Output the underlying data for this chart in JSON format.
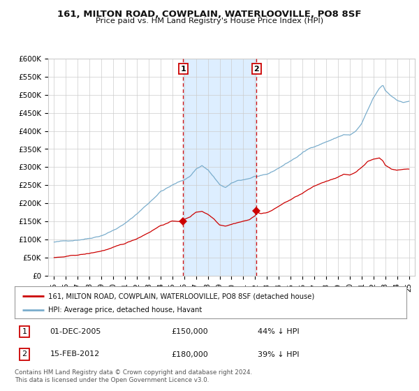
{
  "title": "161, MILTON ROAD, COWPLAIN, WATERLOOVILLE, PO8 8SF",
  "subtitle": "Price paid vs. HM Land Registry's House Price Index (HPI)",
  "legend_property": "161, MILTON ROAD, COWPLAIN, WATERLOOVILLE, PO8 8SF (detached house)",
  "legend_hpi": "HPI: Average price, detached house, Havant",
  "sale1_date": "01-DEC-2005",
  "sale1_price": 150000,
  "sale1_pct": "44%",
  "sale2_date": "15-FEB-2012",
  "sale2_price": 180000,
  "sale2_pct": "39%",
  "footer": "Contains HM Land Registry data © Crown copyright and database right 2024.\nThis data is licensed under the Open Government Licence v3.0.",
  "sale1_x": 2005.92,
  "sale2_x": 2012.12,
  "property_color": "#cc0000",
  "hpi_color": "#7aadcc",
  "shade_color": "#ddeeff",
  "grid_color": "#cccccc",
  "bg_color": "#ffffff",
  "ylim": [
    0,
    600000
  ],
  "xlim": [
    1994.5,
    2025.5
  ],
  "yticks": [
    0,
    50000,
    100000,
    150000,
    200000,
    250000,
    300000,
    350000,
    400000,
    450000,
    500000,
    550000,
    600000
  ],
  "xticks": [
    1995,
    1996,
    1997,
    1998,
    1999,
    2000,
    2001,
    2002,
    2003,
    2004,
    2005,
    2006,
    2007,
    2008,
    2009,
    2010,
    2011,
    2012,
    2013,
    2014,
    2015,
    2016,
    2017,
    2018,
    2019,
    2020,
    2021,
    2022,
    2023,
    2024,
    2025
  ],
  "marker1_prop_y": 150000,
  "marker2_prop_y": 180000
}
